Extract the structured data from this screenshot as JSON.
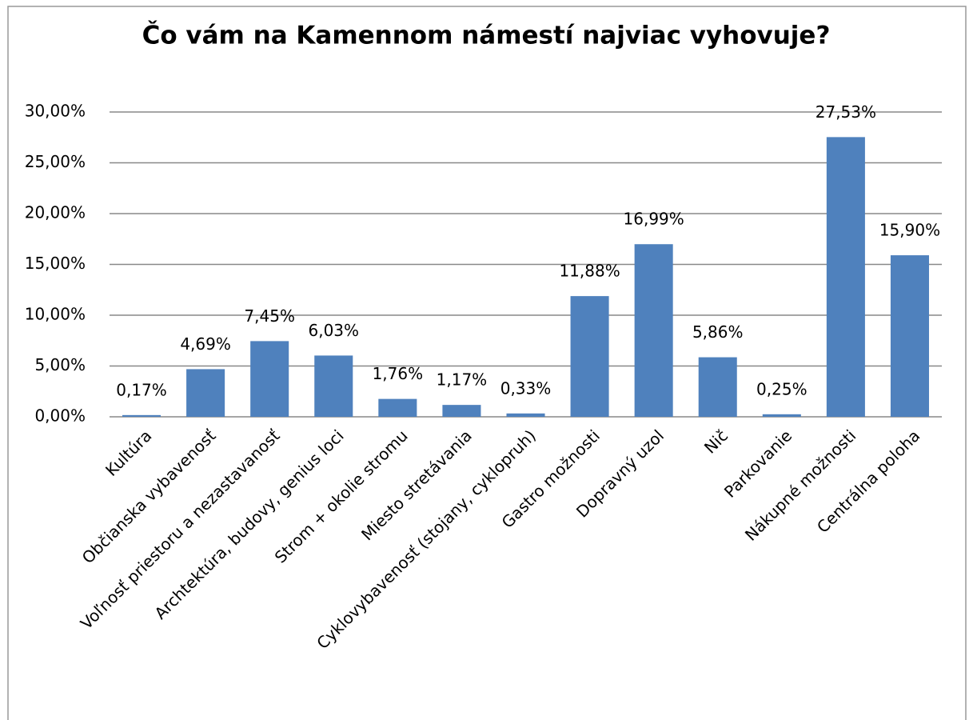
{
  "chart_data": {
    "type": "bar",
    "title": "Čo vám na Kamennom námestí najviac vyhovuje?",
    "categories": [
      "Kultúra",
      "Občianska vybavenosť",
      "Voľnosť priestoru a nezastavanosť",
      "Archtektúra, budovy, genius loci",
      "Strom + okolie stromu",
      "Miesto stretávania",
      "Cyklovybavenosť (stojany, cyklopruh)",
      "Gastro možnosti",
      "Dopravný uzol",
      "Nič",
      "Parkovanie",
      "Nákupné možnosti",
      "Centrálna poloha"
    ],
    "values": [
      0.17,
      4.69,
      7.45,
      6.03,
      1.76,
      1.17,
      0.33,
      11.88,
      16.99,
      5.86,
      0.25,
      27.53,
      15.9
    ],
    "value_labels": [
      "0,17%",
      "4,69%",
      "7,45%",
      "6,03%",
      "1,76%",
      "1,17%",
      "0,33%",
      "11,88%",
      "16,99%",
      "5,86%",
      "0,25%",
      "27,53%",
      "15,90%"
    ],
    "color": "#4f81bd",
    "ylim": [
      0,
      30
    ],
    "yticks": [
      {
        "value": 0,
        "label": "0,00%"
      },
      {
        "value": 5,
        "label": "5,00%"
      },
      {
        "value": 10,
        "label": "10,00%"
      },
      {
        "value": 15,
        "label": "15,00%"
      },
      {
        "value": 20,
        "label": "20,00%"
      },
      {
        "value": 25,
        "label": "25,00%"
      },
      {
        "value": 30,
        "label": "30,00%"
      }
    ],
    "grid": true
  }
}
